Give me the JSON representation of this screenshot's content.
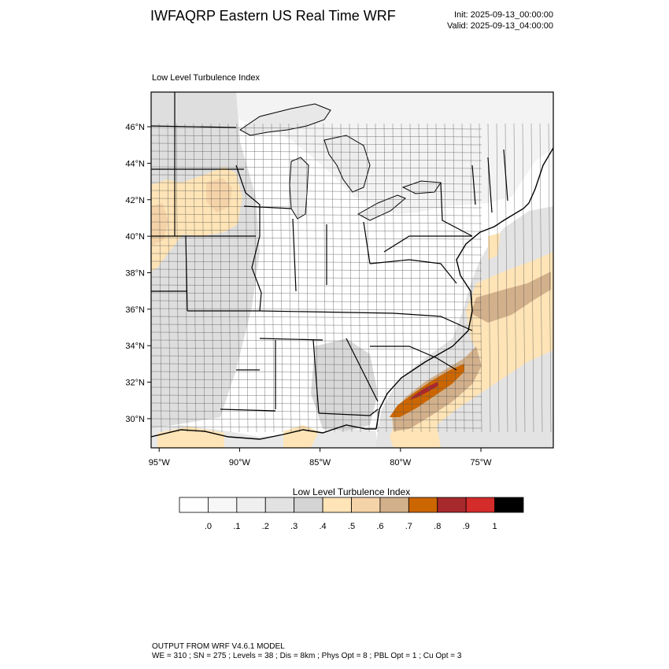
{
  "header": {
    "title": "IWFAQRP Eastern US Real Time WRF",
    "init": "Init: 2025-09-13_00:00:00",
    "valid": "Valid: 2025-09-13_04:00:00"
  },
  "plot": {
    "subtitle": "Low Level Turbulence Index",
    "lat_ticks": [
      "46°N",
      "44°N",
      "42°N",
      "40°N",
      "38°N",
      "36°N",
      "34°N",
      "32°N",
      "30°N"
    ],
    "lon_ticks": [
      "95°W",
      "90°W",
      "85°W",
      "80°W",
      "75°W"
    ],
    "lat_range": [
      28.4,
      47.9
    ],
    "lon_range": [
      -95.5,
      -70.5
    ]
  },
  "colorbar": {
    "title": "Low Level Turbulence Index",
    "labels": [
      ".0",
      ".1",
      ".2",
      ".3",
      ".4",
      ".5",
      ".6",
      ".7",
      ".8",
      ".9",
      "1"
    ],
    "colors": [
      "#ffffff",
      "#f7f7f7",
      "#efefef",
      "#e2e2e2",
      "#d4d4d4",
      "#fee4b6",
      "#f5d3a8",
      "#d2b08b",
      "#cc6600",
      "#a8292c",
      "#d42b2b",
      "#000000"
    ]
  },
  "footer": {
    "line1": "OUTPUT FROM WRF V4.6.1 MODEL",
    "line2": "WE = 310 ; SN = 275 ; Levels = 38 ; Dis = 8km ; Phys Opt = 8 ; PBL Opt = 1 ; Cu Opt = 3"
  },
  "colors": {
    "land": "#ffffff",
    "water": "#f2f2f2",
    "ocean_haze": "#e5e5e5",
    "boundary": "#000000"
  }
}
